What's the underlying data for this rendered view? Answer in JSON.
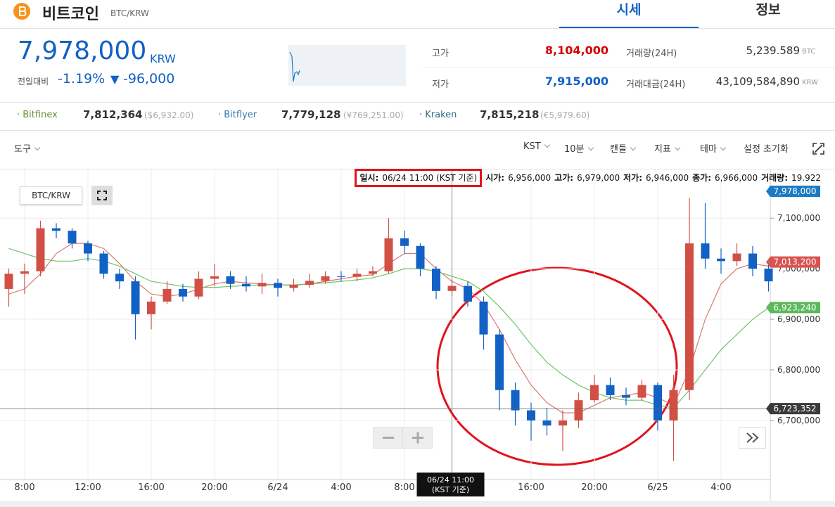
{
  "header": {
    "name": "비트코인",
    "pair": "BTC/KRW",
    "tabs": [
      "시세",
      "정보"
    ]
  },
  "price": {
    "current": "7,978,000",
    "unit": "KRW",
    "change_label": "전일대비",
    "change_pct": "-1.19%",
    "arrow": "▼",
    "change": "-96,000"
  },
  "stats": [
    {
      "label": "고가",
      "value": "8,104,000"
    },
    {
      "label": "저가",
      "value": "7,915,000"
    },
    {
      "label": "거래량(24H)",
      "value": "5,239.589",
      "unit": "BTC"
    },
    {
      "label": "거래대금(24H)",
      "value": "43,109,584,890",
      "unit": "KRW"
    }
  ],
  "exchanges": [
    {
      "name": "Bitfinex",
      "price": "7,812,364",
      "foreign": "($6,932.00)"
    },
    {
      "name": "Bitflyer",
      "price": "7,779,128",
      "foreign": "(¥769,251.00)"
    },
    {
      "name": "Kraken",
      "price": "7,815,218",
      "foreign": "(€5,979.60)"
    }
  ],
  "toolbar": {
    "left": "도구",
    "items": [
      "KST",
      "10분",
      "캔들",
      "지표",
      "테마"
    ],
    "reset": "설정 초기화"
  },
  "chart_data": {
    "type": "candlestick",
    "symbol_button": "BTC/KRW",
    "info": [
      {
        "label": "일시:",
        "value": "06/24 11:00 (KST 기준)"
      },
      {
        "label": "시가:",
        "value": "6,956,000"
      },
      {
        "label": "고가:",
        "value": "6,979,000"
      },
      {
        "label": "저가:",
        "value": "6,946,000"
      },
      {
        "label": "종가:",
        "value": "6,966,000"
      },
      {
        "label": "거래량:",
        "value": "19.922"
      }
    ],
    "x": [
      "06/23 07:00",
      "06/23 08:00",
      "06/23 09:00",
      "06/23 10:00",
      "06/23 11:00",
      "06/23 12:00",
      "06/23 13:00",
      "06/23 14:00",
      "06/23 15:00",
      "06/23 16:00",
      "06/23 17:00",
      "06/23 18:00",
      "06/23 19:00",
      "06/23 20:00",
      "06/23 21:00",
      "06/23 22:00",
      "06/23 23:00",
      "06/24 00:00",
      "06/24 01:00",
      "06/24 02:00",
      "06/24 03:00",
      "06/24 04:00",
      "06/24 05:00",
      "06/24 06:00",
      "06/24 07:00",
      "06/24 08:00",
      "06/24 09:00",
      "06/24 10:00",
      "06/24 11:00",
      "06/24 12:00",
      "06/24 13:00",
      "06/24 14:00",
      "06/24 15:00",
      "06/24 16:00",
      "06/24 17:00",
      "06/24 18:00",
      "06/24 19:00",
      "06/24 20:00",
      "06/24 21:00",
      "06/24 22:00",
      "06/24 23:00",
      "06/25 00:00",
      "06/25 01:00",
      "06/25 02:00",
      "06/25 03:00",
      "06/25 04:00",
      "06/25 05:00",
      "06/25 06:00",
      "06/25 07:00"
    ],
    "open": [
      6960000,
      6990000,
      6995000,
      7080000,
      7075000,
      7050000,
      7030000,
      6990000,
      6975000,
      6910000,
      6935000,
      6960000,
      6945000,
      6980000,
      6985000,
      6970000,
      6965000,
      6972000,
      6962000,
      6968000,
      6976000,
      6985000,
      6984000,
      6990000,
      6995000,
      7060000,
      7045000,
      7000000,
      6956000,
      6966000,
      6935000,
      6870000,
      6760000,
      6720000,
      6700000,
      6690000,
      6700000,
      6740000,
      6770000,
      6750000,
      6745000,
      6770000,
      6700000,
      6760000,
      7050000,
      7020000,
      7015000,
      7030000,
      7000000
    ],
    "high": [
      7000000,
      7010000,
      7095000,
      7090000,
      7080000,
      7055000,
      7035000,
      7000000,
      6985000,
      6945000,
      6975000,
      6970000,
      6995000,
      7010000,
      6995000,
      6985000,
      6990000,
      6980000,
      6980000,
      6990000,
      6995000,
      6995000,
      7000000,
      7005000,
      7100000,
      7075000,
      7050000,
      7005000,
      6979000,
      6975000,
      6945000,
      6880000,
      6775000,
      6735000,
      6725000,
      6720000,
      6755000,
      6790000,
      6785000,
      6765000,
      6780000,
      6775000,
      6790000,
      7140000,
      7130000,
      7040000,
      7050000,
      7045000,
      7010000
    ],
    "low": [
      6925000,
      6950000,
      6985000,
      7060000,
      7040000,
      7015000,
      6980000,
      6960000,
      6860000,
      6880000,
      6930000,
      6935000,
      6940000,
      6965000,
      6960000,
      6955000,
      6950000,
      6945000,
      6955000,
      6962000,
      6970000,
      6975000,
      6975000,
      6985000,
      6990000,
      7030000,
      6985000,
      6940000,
      6946000,
      6925000,
      6840000,
      6720000,
      6690000,
      6660000,
      6670000,
      6640000,
      6685000,
      6735000,
      6740000,
      6730000,
      6740000,
      6680000,
      6620000,
      6740000,
      7000000,
      6990000,
      7005000,
      6985000,
      6955000
    ],
    "close": [
      6990000,
      6995000,
      7080000,
      7075000,
      7050000,
      7030000,
      6990000,
      6975000,
      6910000,
      6935000,
      6960000,
      6945000,
      6980000,
      6985000,
      6970000,
      6965000,
      6972000,
      6962000,
      6968000,
      6976000,
      6985000,
      6984000,
      6990000,
      6995000,
      7060000,
      7045000,
      7000000,
      6956000,
      6966000,
      6935000,
      6870000,
      6760000,
      6720000,
      6700000,
      6690000,
      6700000,
      6740000,
      6770000,
      6750000,
      6745000,
      6770000,
      6700000,
      6760000,
      7050000,
      7020000,
      7015000,
      7030000,
      7000000,
      6975000
    ],
    "up_color": "#d24f45",
    "down_color": "#1261c4",
    "ma": [
      {
        "color": "#d9786f",
        "values": [
          6950000,
          6960000,
          6990000,
          7030000,
          7050000,
          7050000,
          7040000,
          7010000,
          6975000,
          6950000,
          6945000,
          6950000,
          6960000,
          6970000,
          6975000,
          6972000,
          6970000,
          6968000,
          6967000,
          6970000,
          6975000,
          6980000,
          6985000,
          6988000,
          7010000,
          7030000,
          7030000,
          7000000,
          6975000,
          6960000,
          6930000,
          6880000,
          6820000,
          6770000,
          6735000,
          6715000,
          6715000,
          6730000,
          6745000,
          6750000,
          6755000,
          6745000,
          6730000,
          6800000,
          6900000,
          6970000,
          7000000,
          7010000,
          7005000
        ]
      },
      {
        "color": "#6cc46a",
        "values": [
          7040000,
          7030000,
          7020000,
          7015000,
          7015000,
          7020000,
          7015000,
          7005000,
          6990000,
          6975000,
          6970000,
          6965000,
          6963000,
          6963000,
          6965000,
          6967000,
          6968000,
          6968000,
          6968000,
          6970000,
          6972000,
          6975000,
          6978000,
          6982000,
          6990000,
          7000000,
          7000000,
          6995000,
          6985000,
          6975000,
          6955000,
          6925000,
          6890000,
          6850000,
          6815000,
          6790000,
          6770000,
          6755000,
          6745000,
          6740000,
          6740000,
          6730000,
          6725000,
          6760000,
          6800000,
          6840000,
          6870000,
          6900000,
          6923000
        ]
      }
    ],
    "ylim": [
      6597000,
      7167000
    ],
    "yticks": [
      {
        "value": 6700000,
        "label": "6,700,000"
      },
      {
        "value": 6800000,
        "label": "6,800,000"
      },
      {
        "value": 6900000,
        "label": "6,900,000"
      },
      {
        "value": 7000000,
        "label": "7,000,000"
      },
      {
        "value": 7100000,
        "label": "7,100,000"
      }
    ],
    "xticks": [
      {
        "value": "06/23 08:00",
        "label": "8:00"
      },
      {
        "value": "06/23 12:00",
        "label": "12:00"
      },
      {
        "value": "06/23 16:00",
        "label": "16:00"
      },
      {
        "value": "06/23 20:00",
        "label": "20:00"
      },
      {
        "value": "06/24 00:00",
        "label": "6/24"
      },
      {
        "value": "06/24 04:00",
        "label": "4:00"
      },
      {
        "value": "06/24 08:00",
        "label": "8:00"
      },
      {
        "value": "06/24 16:00",
        "label": "16:00"
      },
      {
        "value": "06/24 20:00",
        "label": "20:00"
      },
      {
        "value": "06/25 00:00",
        "label": "6/25"
      },
      {
        "value": "06/25 04:00",
        "label": "4:00"
      }
    ],
    "grid": true,
    "price_markers": [
      {
        "value": 7978000,
        "label": "7,978,000",
        "color": "#1b7bc2"
      },
      {
        "value": 7013200,
        "label": "7,013,200",
        "color": "#d9534f"
      },
      {
        "value": 6923240,
        "label": "6,923,240",
        "color": "#5cb85c"
      }
    ],
    "crosshair": {
      "x": "06/24 11:00",
      "x_label": "06/24 11:00",
      "x_sub": "(KST 기준)",
      "y": 6723352,
      "y_label": "6,723,352"
    }
  }
}
